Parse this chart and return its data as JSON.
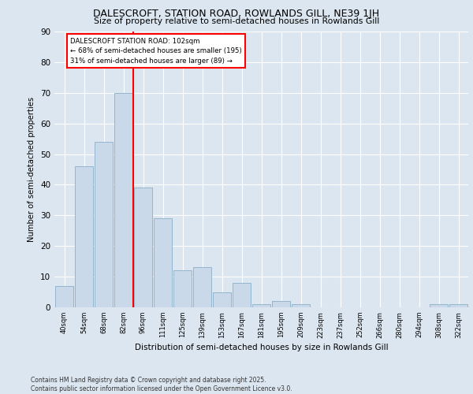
{
  "title1": "DALESCROFT, STATION ROAD, ROWLANDS GILL, NE39 1JH",
  "title2": "Size of property relative to semi-detached houses in Rowlands Gill",
  "xlabel": "Distribution of semi-detached houses by size in Rowlands Gill",
  "ylabel": "Number of semi-detached properties",
  "bins": [
    "40sqm",
    "54sqm",
    "68sqm",
    "82sqm",
    "96sqm",
    "111sqm",
    "125sqm",
    "139sqm",
    "153sqm",
    "167sqm",
    "181sqm",
    "195sqm",
    "209sqm",
    "223sqm",
    "237sqm",
    "252sqm",
    "266sqm",
    "280sqm",
    "294sqm",
    "308sqm",
    "322sqm"
  ],
  "values": [
    7,
    46,
    54,
    70,
    39,
    29,
    12,
    13,
    5,
    8,
    1,
    2,
    1,
    0,
    0,
    0,
    0,
    0,
    0,
    1,
    1
  ],
  "bar_color": "#c9d9ea",
  "bar_edge_color": "#8aaec8",
  "vline_color": "red",
  "annotation_title": "DALESCROFT STATION ROAD: 102sqm",
  "annotation_line1": "← 68% of semi-detached houses are smaller (195)",
  "annotation_line2": "31% of semi-detached houses are larger (89) →",
  "annotation_box_color": "white",
  "annotation_box_edge": "red",
  "ylim": [
    0,
    90
  ],
  "yticks": [
    0,
    10,
    20,
    30,
    40,
    50,
    60,
    70,
    80,
    90
  ],
  "background_color": "#dce6f0",
  "grid_color": "#ffffff",
  "footer1": "Contains HM Land Registry data © Crown copyright and database right 2025.",
  "footer2": "Contains public sector information licensed under the Open Government Licence v3.0."
}
